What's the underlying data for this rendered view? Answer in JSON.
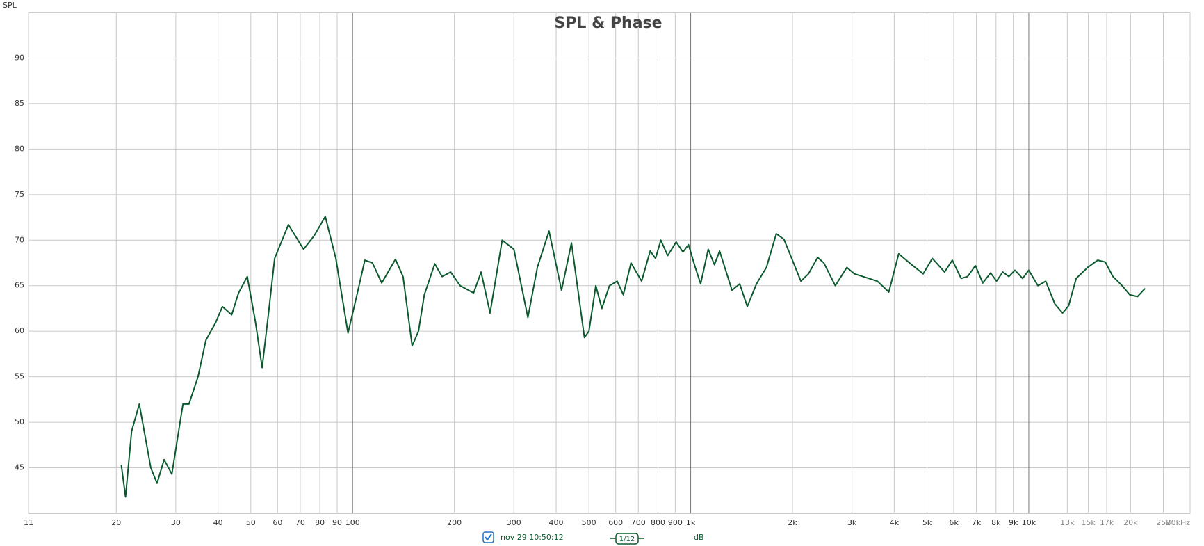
{
  "chart_data": {
    "type": "line",
    "title": "SPL & Phase",
    "y_label": "SPL",
    "log_x": true,
    "grid": true,
    "xlim": [
      11,
      30000
    ],
    "ylim": [
      40,
      95
    ],
    "xticks": [
      11,
      20,
      30,
      40,
      50,
      60,
      70,
      80,
      90,
      100,
      200,
      300,
      400,
      500,
      600,
      700,
      800,
      900,
      {
        "value": 1000,
        "label": "1k"
      },
      {
        "value": 2000,
        "label": "2k"
      },
      {
        "value": 3000,
        "label": "3k"
      },
      {
        "value": 4000,
        "label": "4k"
      },
      {
        "value": 5000,
        "label": "5k"
      },
      {
        "value": 6000,
        "label": "6k"
      },
      {
        "value": 7000,
        "label": "7k"
      },
      {
        "value": 8000,
        "label": "8k"
      },
      {
        "value": 9000,
        "label": "9k"
      },
      {
        "value": 10000,
        "label": "10k"
      },
      {
        "value": 13000,
        "label": "13k"
      },
      {
        "value": 15000,
        "label": "15k"
      },
      {
        "value": 17000,
        "label": "17k"
      },
      {
        "value": 20000,
        "label": "20k"
      },
      {
        "value": 25000,
        "label": "25k"
      },
      {
        "value": 30000,
        "label": "30kHz"
      }
    ],
    "yticks": [
      45,
      50,
      55,
      60,
      65,
      70,
      75,
      80,
      85,
      90
    ],
    "x": [
      20.7,
      21.3,
      22.2,
      23.4,
      25.3,
      26.4,
      27.7,
      29.2,
      31.5,
      32.8,
      34.9,
      36.8,
      39.4,
      41.2,
      43.9,
      46,
      48.8,
      51.6,
      54,
      56.4,
      58.8,
      64.6,
      71.6,
      77,
      83,
      89.2,
      96.9,
      103,
      108.7,
      114.5,
      121.9,
      133.9,
      141,
      150,
      156.6,
      163,
      175,
      184,
      195,
      208,
      228,
      240,
      255,
      277,
      300,
      330,
      352,
      381,
      415,
      444,
      485,
      500,
      524,
      546,
      575,
      606,
      632,
      666,
      716,
      759,
      787,
      816,
      855,
      906,
      949,
      985,
      1032,
      1070,
      1127,
      1175,
      1218,
      1325,
      1396,
      1470,
      1565,
      1675,
      1791,
      1887,
      1990,
      2118,
      2230,
      2374,
      2476,
      2677,
      2896,
      3050,
      3565,
      3855,
      4123,
      4505,
      4870,
      5185,
      5635,
      5940,
      6310,
      6590,
      6950,
      7310,
      7710,
      8030,
      8375,
      8730,
      9100,
      9590,
      10000,
      10640,
      11220,
      11940,
      12590,
      13120,
      13810,
      14930,
      15990,
      16830,
      17740,
      18880,
      19900,
      20960,
      22080
    ],
    "series": [
      {
        "name": "nov 29 10:50:12",
        "color": "#0b5a2e",
        "values": [
          45.3,
          41.8,
          49,
          52,
          45,
          43.3,
          45.9,
          44.3,
          52,
          52,
          55,
          59,
          61,
          62.7,
          61.8,
          64.2,
          66,
          61,
          56,
          62,
          68,
          71.7,
          69,
          70.5,
          72.6,
          68,
          59.8,
          64,
          67.8,
          67.5,
          65.3,
          67.9,
          66,
          58.4,
          60,
          64,
          67.4,
          66,
          66.5,
          65,
          64.2,
          66.5,
          62,
          70,
          69,
          61.5,
          67,
          71,
          64.5,
          69.7,
          59.3,
          60,
          65,
          62.5,
          65,
          65.5,
          64,
          67.5,
          65.5,
          68.8,
          68,
          70,
          68.3,
          69.8,
          68.7,
          69.5,
          67,
          65.2,
          69,
          67.3,
          68.8,
          64.5,
          65.2,
          62.7,
          65.2,
          67,
          70.7,
          70.1,
          68,
          65.5,
          66.3,
          68.1,
          67.5,
          65,
          67,
          66.3,
          65.5,
          64.3,
          68.5,
          67.3,
          66.3,
          68,
          66.5,
          67.8,
          65.8,
          66,
          67.2,
          65.3,
          66.4,
          65.5,
          66.5,
          66,
          66.7,
          65.8,
          66.7,
          65,
          65.5,
          63,
          62,
          62.8,
          65.8,
          67,
          67.8,
          67.6,
          66,
          65,
          64,
          63.8,
          64.7
        ]
      }
    ],
    "smoothing": "1/12",
    "unit": "dB"
  }
}
